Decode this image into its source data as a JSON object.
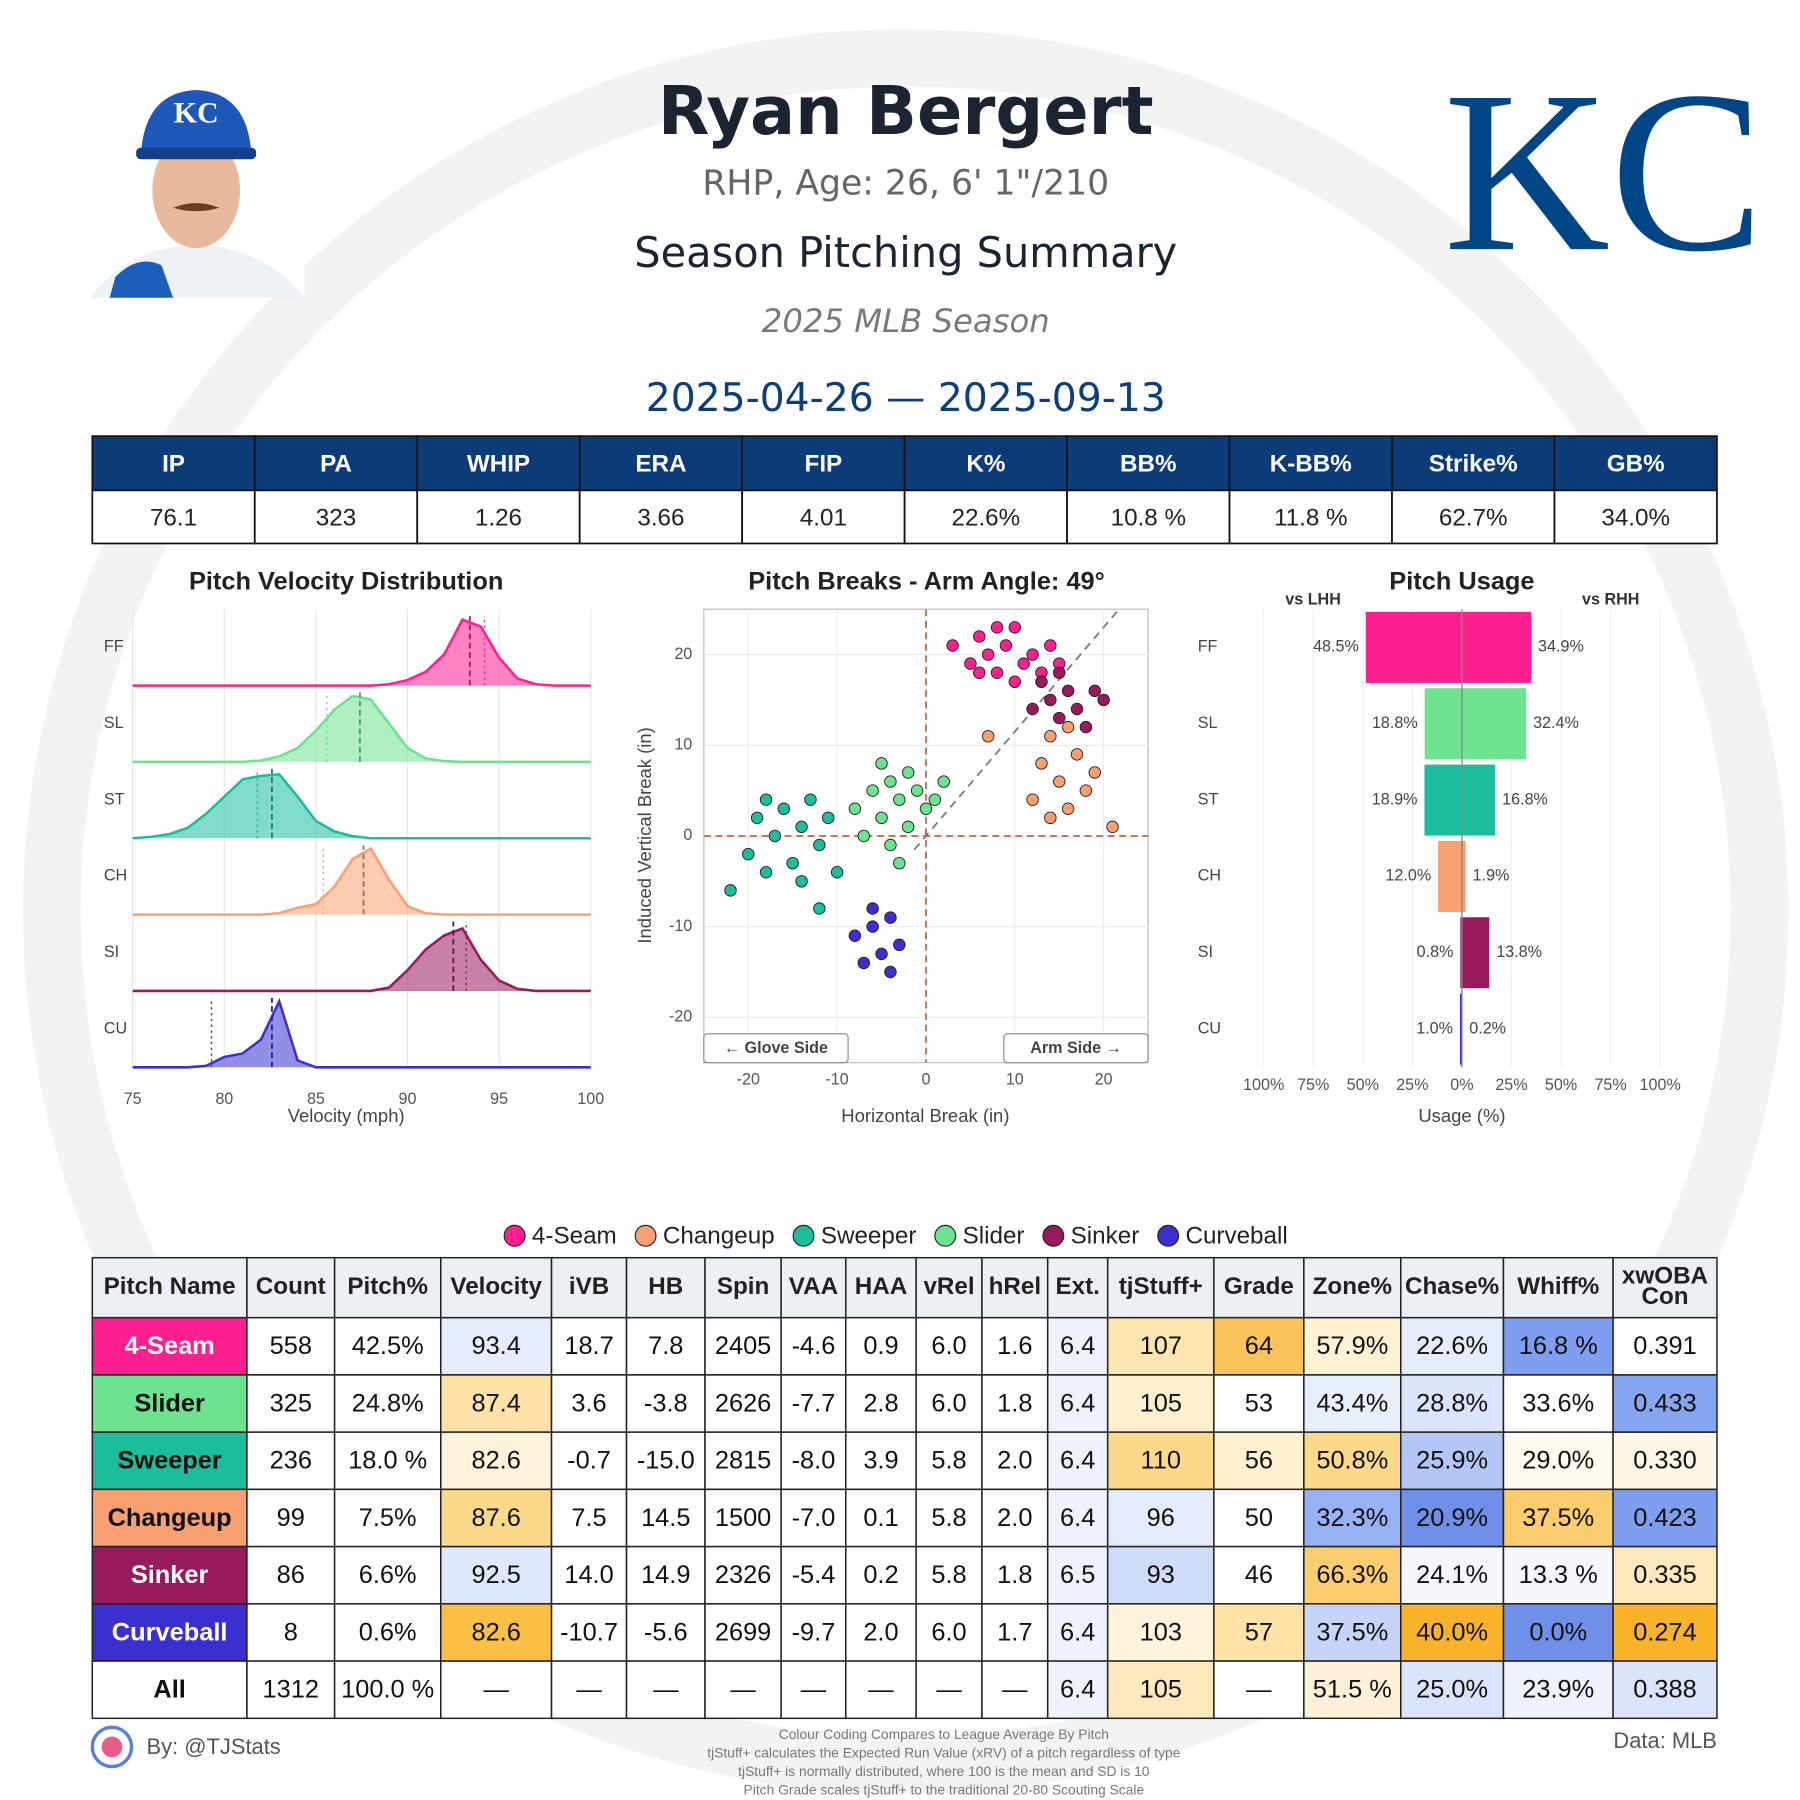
{
  "header": {
    "name": "Ryan Bergert",
    "bio": "RHP, Age: 26, 6' 1\"/210",
    "title": "Season Pitching Summary",
    "season": "2025 MLB Season",
    "dates": "2025-04-26 — 2025-09-13",
    "logo": "KC"
  },
  "stats_table": {
    "headers": [
      "IP",
      "PA",
      "WHIP",
      "ERA",
      "FIP",
      "K%",
      "BB%",
      "K-BB%",
      "Strike%",
      "GB%"
    ],
    "values": [
      "76.1",
      "323",
      "1.26",
      "3.66",
      "4.01",
      "22.6%",
      "10.8 %",
      "11.8 %",
      "62.7%",
      "34.0%"
    ]
  },
  "chart_data": [
    {
      "type": "ridgeline",
      "title": "Pitch Velocity Distribution",
      "xlabel": "Velocity (mph)",
      "xlim": [
        75,
        100
      ],
      "xticks": [
        75,
        80,
        85,
        90,
        95,
        100
      ],
      "ylim": [
        0,
        1
      ],
      "x": [
        75,
        76,
        77,
        78,
        79,
        80,
        81,
        82,
        83,
        84,
        85,
        86,
        87,
        88,
        89,
        90,
        91,
        92,
        93,
        94,
        95,
        96,
        97,
        98,
        99,
        100
      ],
      "series": [
        {
          "name": "FF",
          "color": "#ff1f8e",
          "mean": 93.4,
          "league_mean": 94.2,
          "values": [
            0,
            0,
            0,
            0,
            0,
            0,
            0,
            0,
            0,
            0,
            0,
            0,
            0,
            0,
            0.02,
            0.08,
            0.2,
            0.45,
            0.95,
            0.85,
            0.4,
            0.1,
            0.02,
            0,
            0,
            0
          ]
        },
        {
          "name": "SL",
          "color": "#6de28f",
          "mean": 87.4,
          "league_mean": 85.6,
          "values": [
            0,
            0,
            0,
            0,
            0,
            0,
            0,
            0.02,
            0.08,
            0.2,
            0.45,
            0.75,
            0.95,
            0.9,
            0.55,
            0.2,
            0.05,
            0.01,
            0,
            0,
            0,
            0,
            0,
            0,
            0,
            0
          ]
        },
        {
          "name": "ST",
          "color": "#1bbd9a",
          "mean": 82.6,
          "league_mean": 81.8,
          "values": [
            0,
            0.02,
            0.06,
            0.15,
            0.35,
            0.6,
            0.85,
            0.9,
            0.92,
            0.6,
            0.25,
            0.1,
            0.03,
            0,
            0,
            0,
            0,
            0,
            0,
            0,
            0,
            0,
            0,
            0,
            0,
            0
          ]
        },
        {
          "name": "CH",
          "color": "#f9a071",
          "mean": 87.6,
          "league_mean": 85.4,
          "values": [
            0,
            0,
            0,
            0,
            0,
            0,
            0,
            0,
            0.02,
            0.1,
            0.15,
            0.4,
            0.8,
            0.95,
            0.5,
            0.12,
            0.02,
            0,
            0,
            0,
            0,
            0,
            0,
            0,
            0,
            0
          ]
        },
        {
          "name": "SI",
          "color": "#971a5d",
          "mean": 92.5,
          "league_mean": 93.2,
          "values": [
            0,
            0,
            0,
            0,
            0,
            0,
            0,
            0,
            0,
            0,
            0,
            0,
            0,
            0,
            0.05,
            0.3,
            0.6,
            0.8,
            0.9,
            0.45,
            0.15,
            0.03,
            0,
            0,
            0,
            0
          ]
        },
        {
          "name": "CU",
          "color": "#3b2fd0",
          "mean": 82.6,
          "league_mean": 79.3,
          "values": [
            0,
            0,
            0,
            0,
            0.02,
            0.15,
            0.2,
            0.4,
            0.95,
            0.1,
            0,
            0,
            0,
            0,
            0,
            0,
            0,
            0,
            0,
            0,
            0,
            0,
            0,
            0,
            0,
            0
          ]
        }
      ]
    },
    {
      "type": "scatter",
      "title": "Pitch Breaks - Arm Angle: 49°",
      "arm_angle": 49,
      "xlabel": "Horizontal Break (in)",
      "ylabel": "Induced Vertical Break (in)",
      "xlim": [
        -25,
        25
      ],
      "ylim": [
        -25,
        25
      ],
      "xticks": [
        -20,
        -10,
        0,
        10,
        20
      ],
      "yticks": [
        -20,
        -10,
        0,
        10,
        20
      ],
      "annotations": [
        "← Glove Side",
        "Arm Side →"
      ],
      "series": [
        {
          "name": "4-Seam",
          "color": "#ff1f8e",
          "x": [
            3,
            5,
            6,
            7,
            8,
            9,
            10,
            11,
            12,
            13,
            14,
            8,
            6,
            10,
            15
          ],
          "y": [
            21,
            19,
            22,
            20,
            18,
            21,
            23,
            19,
            20,
            18,
            21,
            23,
            18,
            17,
            19
          ]
        },
        {
          "name": "Changeup",
          "color": "#f9a071",
          "x": [
            12,
            13,
            14,
            15,
            16,
            17,
            18,
            14,
            16,
            19,
            7,
            21
          ],
          "y": [
            4,
            8,
            11,
            6,
            3,
            9,
            5,
            2,
            12,
            7,
            11,
            1
          ]
        },
        {
          "name": "Sweeper",
          "color": "#1bbd9a",
          "x": [
            -22,
            -20,
            -19,
            -18,
            -17,
            -16,
            -15,
            -14,
            -13,
            -12,
            -11,
            -10,
            -14,
            -12,
            -18
          ],
          "y": [
            -6,
            -2,
            2,
            -4,
            0,
            3,
            -3,
            1,
            4,
            -1,
            2,
            -4,
            -5,
            -8,
            4
          ]
        },
        {
          "name": "Slider",
          "color": "#6de28f",
          "x": [
            -8,
            -6,
            -5,
            -4,
            -3,
            -2,
            -1,
            0,
            -7,
            -4,
            -2,
            1,
            2,
            -5,
            -3
          ],
          "y": [
            3,
            5,
            2,
            6,
            4,
            1,
            5,
            3,
            0,
            -1,
            7,
            4,
            6,
            8,
            -3
          ]
        },
        {
          "name": "Sinker",
          "color": "#971a5d",
          "x": [
            12,
            13,
            14,
            15,
            16,
            17,
            18,
            19,
            20,
            15
          ],
          "y": [
            14,
            17,
            15,
            13,
            16,
            14,
            12,
            16,
            15,
            18
          ]
        },
        {
          "name": "Curveball",
          "color": "#3b2fd0",
          "x": [
            -8,
            -7,
            -6,
            -5,
            -4,
            -3,
            -4,
            -6
          ],
          "y": [
            -11,
            -14,
            -10,
            -13,
            -9,
            -12,
            -15,
            -8
          ]
        }
      ]
    },
    {
      "type": "diverging_bar",
      "title": "Pitch Usage",
      "xlabel": "Usage (%)",
      "categories": [
        "FF",
        "SL",
        "ST",
        "CH",
        "SI",
        "CU"
      ],
      "colors": [
        "#ff1f8e",
        "#6de28f",
        "#1bbd9a",
        "#f9a071",
        "#971a5d",
        "#3b2fd0"
      ],
      "xlim": [
        -110,
        110
      ],
      "xticks": [
        {
          "value": -100,
          "label": "100%"
        },
        {
          "value": -75,
          "label": "75%"
        },
        {
          "value": -50,
          "label": "50%"
        },
        {
          "value": -25,
          "label": "25%"
        },
        {
          "value": 0,
          "label": "0%"
        },
        {
          "value": 25,
          "label": "25%"
        },
        {
          "value": 50,
          "label": "50%"
        },
        {
          "value": 75,
          "label": "75%"
        },
        {
          "value": 100,
          "label": "100%"
        }
      ],
      "series": [
        {
          "name": "vs LHH",
          "values": [
            48.5,
            18.8,
            18.9,
            12.0,
            0.8,
            1.0
          ],
          "value_labels": [
            "48.5%",
            "18.8%",
            "18.9%",
            "12.0%",
            "0.8%",
            "1.0%"
          ]
        },
        {
          "name": "vs RHH",
          "values": [
            34.9,
            32.4,
            16.8,
            1.9,
            13.8,
            0.2
          ],
          "value_labels": [
            "34.9%",
            "32.4%",
            "16.8%",
            "1.9%",
            "13.8%",
            "0.2%"
          ]
        }
      ]
    }
  ],
  "pitch_table": {
    "headers": [
      "Pitch Name",
      "Count",
      "Pitch%",
      "Velocity",
      "iVB",
      "HB",
      "Spin",
      "VAA",
      "HAA",
      "vRel",
      "hRel",
      "Ext.",
      "tjStuff+",
      "Grade",
      "Zone%",
      "Chase%",
      "Whiff%",
      "xwOBA\nCon"
    ],
    "rows": [
      {
        "cells": [
          "4-Seam",
          "558",
          "42.5%",
          "93.4",
          "18.7",
          "7.8",
          "2405",
          "-4.6",
          "0.9",
          "6.0",
          "1.6",
          "6.4",
          "107",
          "64",
          "57.9%",
          "22.6%",
          "16.8 %",
          "0.391"
        ],
        "fills": [
          "#ff1f8e",
          "#ffffff",
          "#ffffff",
          "#e6ecfb",
          "#ffffff",
          "#ffffff",
          "#ffffff",
          "#ffffff",
          "#ffffff",
          "#ffffff",
          "#ffffff",
          "#eef2fc",
          "#fde6b0",
          "#fbc45a",
          "#fff1d4",
          "#e6ecfb",
          "#7f9ef0",
          "#ffffff"
        ]
      },
      {
        "cells": [
          "Slider",
          "325",
          "24.8%",
          "87.4",
          "3.6",
          "-3.8",
          "2626",
          "-7.7",
          "2.8",
          "6.0",
          "1.8",
          "6.4",
          "105",
          "53",
          "43.4%",
          "28.8%",
          "33.6%",
          "0.433"
        ],
        "fills": [
          "#6de28f",
          "#ffffff",
          "#ffffff",
          "#fde2a8",
          "#ffffff",
          "#ffffff",
          "#ffffff",
          "#ffffff",
          "#ffffff",
          "#ffffff",
          "#ffffff",
          "#eef2fc",
          "#fff0cf",
          "#ffffff",
          "#e9eefb",
          "#dbe4fa",
          "#ffffff",
          "#88a5f0"
        ]
      },
      {
        "cells": [
          "Sweeper",
          "236",
          "18.0 %",
          "82.6",
          "-0.7",
          "-15.0",
          "2815",
          "-8.0",
          "3.9",
          "5.8",
          "2.0",
          "6.4",
          "110",
          "56",
          "50.8%",
          "25.9%",
          "29.0%",
          "0.330"
        ],
        "fills": [
          "#1bbd9a",
          "#ffffff",
          "#ffffff",
          "#fff3db",
          "#ffffff",
          "#ffffff",
          "#ffffff",
          "#ffffff",
          "#ffffff",
          "#ffffff",
          "#ffffff",
          "#eef2fc",
          "#fcd98a",
          "#fff0cf",
          "#fcd98a",
          "#b3c6f6",
          "#fffaf0",
          "#fff8e8"
        ]
      },
      {
        "cells": [
          "Changeup",
          "99",
          "7.5%",
          "87.6",
          "7.5",
          "14.5",
          "1500",
          "-7.0",
          "0.1",
          "5.8",
          "2.0",
          "6.4",
          "96",
          "50",
          "32.3%",
          "20.9%",
          "37.5%",
          "0.423"
        ],
        "fills": [
          "#f9a071",
          "#ffffff",
          "#ffffff",
          "#fcd98a",
          "#ffffff",
          "#ffffff",
          "#ffffff",
          "#ffffff",
          "#ffffff",
          "#ffffff",
          "#ffffff",
          "#eef2fc",
          "#e4ebfb",
          "#ffffff",
          "#97b1f2",
          "#6f8fe8",
          "#fbcd6e",
          "#7f9ef0"
        ]
      },
      {
        "cells": [
          "Sinker",
          "86",
          "6.6%",
          "92.5",
          "14.0",
          "14.9",
          "2326",
          "-5.4",
          "0.2",
          "5.8",
          "1.8",
          "6.5",
          "93",
          "46",
          "66.3%",
          "24.1%",
          "13.3 %",
          "0.335"
        ],
        "fills": [
          "#971a5d",
          "#ffffff",
          "#ffffff",
          "#e0e8fb",
          "#ffffff",
          "#ffffff",
          "#ffffff",
          "#ffffff",
          "#ffffff",
          "#ffffff",
          "#ffffff",
          "#eef2fc",
          "#cfdcf8",
          "#ffffff",
          "#fbcd6e",
          "#f6f8fe",
          "#f6f8fe",
          "#fde9bd"
        ]
      },
      {
        "cells": [
          "Curveball",
          "8",
          "0.6%",
          "82.6",
          "-10.7",
          "-5.6",
          "2699",
          "-9.7",
          "2.0",
          "6.0",
          "1.7",
          "6.4",
          "103",
          "57",
          "37.5%",
          "40.0%",
          "0.0%",
          "0.274"
        ],
        "fills": [
          "#3b2fd0",
          "#ffffff",
          "#ffffff",
          "#fbbf45",
          "#ffffff",
          "#ffffff",
          "#ffffff",
          "#ffffff",
          "#ffffff",
          "#ffffff",
          "#ffffff",
          "#eef2fc",
          "#fff3db",
          "#fde3a5",
          "#c6d4f7",
          "#f9b32b",
          "#6f8fe8",
          "#f9b32b"
        ]
      },
      {
        "cells": [
          "All",
          "1312",
          "100.0 %",
          "—",
          "—",
          "—",
          "—",
          "—",
          "—",
          "—",
          "—",
          "6.4",
          "105",
          "—",
          "51.5 %",
          "25.0%",
          "23.9%",
          "0.388"
        ],
        "fills": [
          "#ffffff",
          "#ffffff",
          "#ffffff",
          "#ffffff",
          "#ffffff",
          "#ffffff",
          "#ffffff",
          "#ffffff",
          "#ffffff",
          "#ffffff",
          "#ffffff",
          "#eef2fc",
          "#fde9bd",
          "#ffffff",
          "#fdf0d6",
          "#dbe4fa",
          "#eef2fc",
          "#dbe4fa"
        ]
      }
    ]
  },
  "footer": {
    "credit": "By: @TJStats",
    "source": "Data: MLB",
    "notes": [
      "Colour Coding Compares to League Average By Pitch",
      "tjStuff+ calculates the Expected Run Value (xRV) of a pitch regardless of type",
      "tjStuff+ is normally distributed, where 100 is the mean and SD is 10",
      "Pitch Grade scales tjStuff+ to the traditional 20-80 Scouting Scale"
    ]
  }
}
